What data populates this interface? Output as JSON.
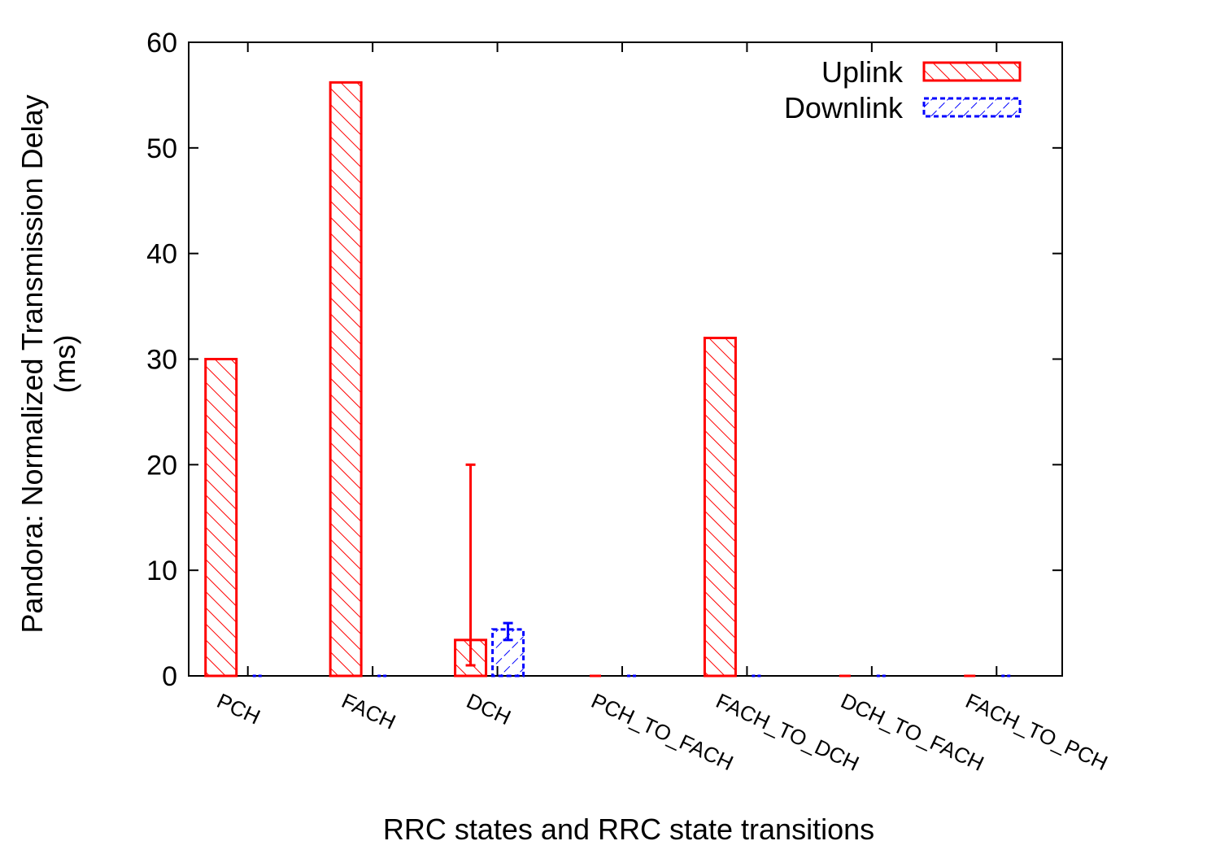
{
  "chart_data": {
    "type": "bar",
    "title": "",
    "xlabel": "RRC states and RRC state transitions",
    "ylabel_lines": [
      "Pandora: Normalized Transmission Delay",
      "(ms)"
    ],
    "ylim": [
      0,
      60
    ],
    "yticks": [
      0,
      10,
      20,
      30,
      40,
      50,
      60
    ],
    "categories": [
      "PCH",
      "FACH",
      "DCH",
      "PCH_TO_FACH",
      "FACH_TO_DCH",
      "DCH_TO_FACH",
      "FACH_TO_PCH"
    ],
    "series": [
      {
        "name": "Uplink",
        "color": "#ff0000",
        "pattern": "backslash-hatch",
        "values": [
          30,
          56.2,
          3.4,
          0,
          32,
          0,
          0
        ],
        "error_low": [
          null,
          null,
          1.0,
          null,
          null,
          null,
          null
        ],
        "error_high": [
          null,
          null,
          20.0,
          null,
          null,
          null,
          null
        ]
      },
      {
        "name": "Downlink",
        "color": "#0000ff",
        "pattern": "slash-hatch-dashed",
        "values": [
          0,
          0,
          4.4,
          0,
          0,
          0,
          0
        ],
        "error_low": [
          null,
          null,
          3.4,
          null,
          null,
          null,
          null
        ],
        "error_high": [
          null,
          null,
          5.0,
          null,
          null,
          null,
          null
        ]
      }
    ],
    "grid": false,
    "legend_position": "top-right"
  }
}
